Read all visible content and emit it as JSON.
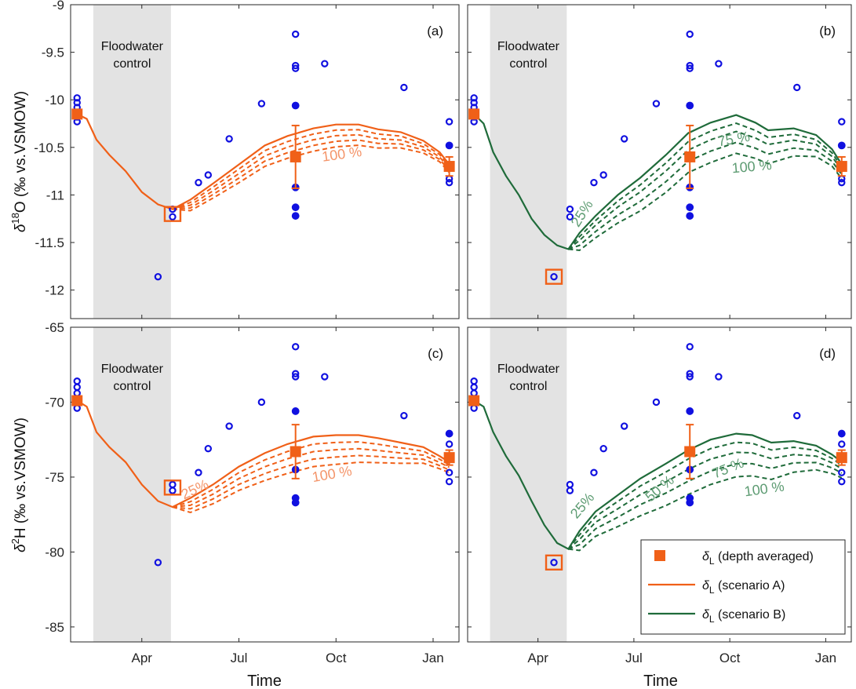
{
  "figure": {
    "xlabel": "Time",
    "ylabel_a": {
      "base": "δ",
      "sup": "18",
      "rest": "O (‰ vs.VSMOW)"
    },
    "ylabel_b": {
      "base": "δ",
      "sup": "2",
      "rest": "H (‰ vs.VSMOW)"
    },
    "shade_label": [
      "Floodwater",
      "control"
    ],
    "x_ticks": [
      {
        "v": 4,
        "label": "Apr"
      },
      {
        "v": 7,
        "label": "Jul"
      },
      {
        "v": 10,
        "label": "Oct"
      },
      {
        "v": 13,
        "label": "Jan"
      }
    ],
    "xlim": [
      1.8,
      13.8
    ],
    "shade_range": [
      2.5,
      4.9
    ],
    "colors": {
      "orange": "#F06018",
      "orange_light": "#F4956A",
      "green": "#1F6B3A",
      "green_light": "#5E9C73",
      "blue": "#1010E0",
      "grey_shade": "#E3E3E3"
    }
  },
  "legend": [
    {
      "label": "δL (depth averaged)",
      "sym": "δ",
      "sub": "L",
      "text": " (depth averaged)",
      "kind": "square"
    },
    {
      "label": "δL (scenario A)",
      "sym": "δ",
      "sub": "L",
      "text": " (scenario A)",
      "kind": "lineA"
    },
    {
      "label": "δL (scenario B)",
      "sym": "δ",
      "sub": "L",
      "text": " (scenario B)",
      "kind": "lineB"
    }
  ],
  "chart_data": [
    {
      "panel": "(a)",
      "type": "line",
      "scenario": "A",
      "ylim": [
        -12.3,
        -9
      ],
      "yticks": [
        -9,
        -9.5,
        -10,
        -10.5,
        -11,
        -11.5,
        -12
      ],
      "measured_open": [
        [
          2.0,
          -9.98
        ],
        [
          2.0,
          -10.03
        ],
        [
          2.0,
          -10.08
        ],
        [
          2.0,
          -10.13
        ],
        [
          2.0,
          -10.18
        ],
        [
          2.0,
          -10.23
        ],
        [
          4.95,
          -11.15
        ],
        [
          4.95,
          -11.23
        ],
        [
          4.5,
          -11.86
        ],
        [
          5.75,
          -10.87
        ],
        [
          6.05,
          -10.79
        ],
        [
          6.7,
          -10.41
        ],
        [
          7.7,
          -10.04
        ],
        [
          8.75,
          -9.31
        ],
        [
          8.75,
          -9.64
        ],
        [
          8.75,
          -9.67
        ],
        [
          9.65,
          -9.62
        ],
        [
          12.1,
          -9.87
        ],
        [
          13.5,
          -10.23
        ],
        [
          13.5,
          -10.83
        ],
        [
          13.5,
          -10.87
        ]
      ],
      "measured_filled": [
        [
          8.75,
          -10.06
        ],
        [
          8.75,
          -10.92
        ],
        [
          8.75,
          -11.13
        ],
        [
          8.75,
          -11.22
        ],
        [
          13.5,
          -10.48
        ]
      ],
      "depth_avg": [
        {
          "x": 2.0,
          "y": -10.15,
          "err": 0
        },
        {
          "x": 8.75,
          "y": -10.6,
          "err": 0.33
        },
        {
          "x": 13.5,
          "y": -10.7,
          "err": 0.1
        }
      ],
      "highlight": [
        4.95,
        -11.2
      ],
      "main_line": [
        [
          2.0,
          -10.15
        ],
        [
          2.3,
          -10.2
        ],
        [
          2.6,
          -10.42
        ],
        [
          3.0,
          -10.58
        ],
        [
          3.5,
          -10.75
        ],
        [
          4.0,
          -10.97
        ],
        [
          4.5,
          -11.1
        ],
        [
          4.95,
          -11.15
        ],
        [
          5.5,
          -11.05
        ],
        [
          6.2,
          -10.88
        ],
        [
          7.0,
          -10.68
        ],
        [
          7.8,
          -10.48
        ],
        [
          8.5,
          -10.38
        ],
        [
          9.3,
          -10.3
        ],
        [
          10.0,
          -10.26
        ],
        [
          10.7,
          -10.26
        ],
        [
          11.3,
          -10.31
        ],
        [
          12.0,
          -10.34
        ],
        [
          12.7,
          -10.43
        ],
        [
          13.2,
          -10.55
        ],
        [
          13.5,
          -10.68
        ]
      ],
      "dashed_offsets": [
        0.06,
        0.12,
        0.18,
        0.24
      ],
      "pct_labels": [
        {
          "x": 10.2,
          "y": -10.62,
          "text": "100 %",
          "rot": -8
        }
      ]
    },
    {
      "panel": "(b)",
      "type": "line",
      "scenario": "B",
      "ylim": [
        -12.3,
        -9
      ],
      "yticks": [
        -9,
        -9.5,
        -10,
        -10.5,
        -11,
        -11.5,
        -12
      ],
      "measured_open": [
        [
          2.0,
          -9.98
        ],
        [
          2.0,
          -10.03
        ],
        [
          2.0,
          -10.08
        ],
        [
          2.0,
          -10.13
        ],
        [
          2.0,
          -10.18
        ],
        [
          2.0,
          -10.23
        ],
        [
          5.0,
          -11.15
        ],
        [
          5.0,
          -11.23
        ],
        [
          4.5,
          -11.86
        ],
        [
          5.75,
          -10.87
        ],
        [
          6.05,
          -10.79
        ],
        [
          6.7,
          -10.41
        ],
        [
          7.7,
          -10.04
        ],
        [
          8.75,
          -9.31
        ],
        [
          8.75,
          -9.64
        ],
        [
          8.75,
          -9.67
        ],
        [
          9.65,
          -9.62
        ],
        [
          12.1,
          -9.87
        ],
        [
          13.5,
          -10.23
        ],
        [
          13.5,
          -10.83
        ],
        [
          13.5,
          -10.87
        ]
      ],
      "measured_filled": [
        [
          8.75,
          -10.06
        ],
        [
          8.75,
          -10.92
        ],
        [
          8.75,
          -11.13
        ],
        [
          8.75,
          -11.22
        ],
        [
          13.5,
          -10.48
        ]
      ],
      "depth_avg": [
        {
          "x": 2.0,
          "y": -10.15,
          "err": 0
        },
        {
          "x": 8.75,
          "y": -10.6,
          "err": 0.33
        },
        {
          "x": 13.5,
          "y": -10.7,
          "err": 0.1
        }
      ],
      "highlight": [
        4.5,
        -11.86
      ],
      "main_line": [
        [
          2.0,
          -10.15
        ],
        [
          2.3,
          -10.25
        ],
        [
          2.6,
          -10.55
        ],
        [
          3.0,
          -10.8
        ],
        [
          3.4,
          -11.0
        ],
        [
          3.8,
          -11.25
        ],
        [
          4.2,
          -11.42
        ],
        [
          4.6,
          -11.53
        ],
        [
          4.95,
          -11.57
        ],
        [
          5.3,
          -11.4
        ],
        [
          5.8,
          -11.22
        ],
        [
          6.5,
          -11.0
        ],
        [
          7.2,
          -10.82
        ],
        [
          8.0,
          -10.58
        ],
        [
          8.7,
          -10.35
        ],
        [
          9.4,
          -10.24
        ],
        [
          10.2,
          -10.16
        ],
        [
          10.8,
          -10.24
        ],
        [
          11.2,
          -10.32
        ],
        [
          12.0,
          -10.3
        ],
        [
          12.7,
          -10.37
        ],
        [
          13.2,
          -10.52
        ],
        [
          13.5,
          -10.68
        ]
      ],
      "dashed_offsets": [
        0.09,
        0.18,
        0.3,
        0.42
      ],
      "pct_labels": [
        {
          "x": 5.5,
          "y": -11.22,
          "text": "25%",
          "rot": -58
        },
        {
          "x": 10.15,
          "y": -10.46,
          "text": "75 %",
          "rot": -10
        },
        {
          "x": 10.7,
          "y": -10.75,
          "text": "100 %",
          "rot": -5
        }
      ]
    },
    {
      "panel": "(c)",
      "type": "line",
      "scenario": "A",
      "ylim": [
        -86,
        -65
      ],
      "yticks": [
        -65,
        -70,
        -75,
        -80,
        -85
      ],
      "measured_open": [
        [
          2.0,
          -68.6
        ],
        [
          2.0,
          -69.0
        ],
        [
          2.0,
          -69.4
        ],
        [
          2.0,
          -70.4
        ],
        [
          4.95,
          -75.5
        ],
        [
          4.95,
          -75.9
        ],
        [
          4.5,
          -80.7
        ],
        [
          5.75,
          -74.7
        ],
        [
          6.05,
          -73.1
        ],
        [
          6.7,
          -71.6
        ],
        [
          7.7,
          -70.0
        ],
        [
          8.75,
          -66.3
        ],
        [
          8.75,
          -68.1
        ],
        [
          8.75,
          -68.3
        ],
        [
          9.65,
          -68.3
        ],
        [
          12.1,
          -70.9
        ],
        [
          13.5,
          -72.8
        ],
        [
          13.5,
          -74.7
        ],
        [
          13.5,
          -75.3
        ]
      ],
      "measured_filled": [
        [
          8.75,
          -70.6
        ],
        [
          8.75,
          -74.5
        ],
        [
          8.75,
          -76.4
        ],
        [
          8.75,
          -76.7
        ],
        [
          13.5,
          -72.1
        ]
      ],
      "depth_avg": [
        {
          "x": 2.0,
          "y": -69.9,
          "err": 0
        },
        {
          "x": 8.75,
          "y": -73.3,
          "err": 1.8
        },
        {
          "x": 13.5,
          "y": -73.7,
          "err": 0.5
        }
      ],
      "highlight": [
        4.95,
        -75.7
      ],
      "main_line": [
        [
          2.0,
          -69.9
        ],
        [
          2.3,
          -70.3
        ],
        [
          2.6,
          -72.0
        ],
        [
          3.0,
          -73.0
        ],
        [
          3.5,
          -74.0
        ],
        [
          4.0,
          -75.5
        ],
        [
          4.5,
          -76.6
        ],
        [
          4.95,
          -77.0
        ],
        [
          5.5,
          -76.4
        ],
        [
          6.2,
          -75.5
        ],
        [
          7.0,
          -74.3
        ],
        [
          7.8,
          -73.4
        ],
        [
          8.5,
          -72.8
        ],
        [
          9.3,
          -72.3
        ],
        [
          10.0,
          -72.2
        ],
        [
          10.7,
          -72.2
        ],
        [
          11.3,
          -72.4
        ],
        [
          12.0,
          -72.7
        ],
        [
          12.7,
          -73.0
        ],
        [
          13.2,
          -73.6
        ],
        [
          13.5,
          -74.0
        ]
      ],
      "dashed_offsets": [
        0.5,
        1.0,
        1.5,
        2.0
      ],
      "pct_labels": [
        {
          "x": 5.7,
          "y": -76.1,
          "text": "25%",
          "rot": -25
        },
        {
          "x": 9.9,
          "y": -75.1,
          "text": "100 %",
          "rot": -10
        }
      ]
    },
    {
      "panel": "(d)",
      "type": "line",
      "scenario": "B",
      "ylim": [
        -86,
        -65
      ],
      "yticks": [
        -65,
        -70,
        -75,
        -80,
        -85
      ],
      "measured_open": [
        [
          2.0,
          -68.6
        ],
        [
          2.0,
          -69.0
        ],
        [
          2.0,
          -69.4
        ],
        [
          2.0,
          -70.4
        ],
        [
          5.0,
          -75.5
        ],
        [
          5.0,
          -75.9
        ],
        [
          4.5,
          -80.7
        ],
        [
          5.75,
          -74.7
        ],
        [
          6.05,
          -73.1
        ],
        [
          6.7,
          -71.6
        ],
        [
          7.7,
          -70.0
        ],
        [
          8.75,
          -66.3
        ],
        [
          8.75,
          -68.1
        ],
        [
          8.75,
          -68.3
        ],
        [
          9.65,
          -68.3
        ],
        [
          12.1,
          -70.9
        ],
        [
          13.5,
          -72.8
        ],
        [
          13.5,
          -74.7
        ],
        [
          13.5,
          -75.3
        ]
      ],
      "measured_filled": [
        [
          8.75,
          -70.6
        ],
        [
          8.75,
          -74.5
        ],
        [
          8.75,
          -76.4
        ],
        [
          8.75,
          -76.7
        ],
        [
          13.5,
          -72.1
        ]
      ],
      "depth_avg": [
        {
          "x": 2.0,
          "y": -69.9,
          "err": 0
        },
        {
          "x": 8.75,
          "y": -73.3,
          "err": 1.8
        },
        {
          "x": 13.5,
          "y": -73.7,
          "err": 0.5
        }
      ],
      "highlight": [
        4.5,
        -80.7
      ],
      "main_line": [
        [
          2.0,
          -69.9
        ],
        [
          2.3,
          -70.3
        ],
        [
          2.6,
          -72.0
        ],
        [
          3.0,
          -73.6
        ],
        [
          3.4,
          -74.9
        ],
        [
          3.8,
          -76.6
        ],
        [
          4.2,
          -78.2
        ],
        [
          4.6,
          -79.4
        ],
        [
          4.95,
          -79.8
        ],
        [
          5.3,
          -78.6
        ],
        [
          5.8,
          -77.3
        ],
        [
          6.5,
          -76.2
        ],
        [
          7.2,
          -75.1
        ],
        [
          8.0,
          -74.1
        ],
        [
          8.7,
          -73.2
        ],
        [
          9.4,
          -72.5
        ],
        [
          10.2,
          -72.1
        ],
        [
          10.7,
          -72.2
        ],
        [
          11.3,
          -72.7
        ],
        [
          12.0,
          -72.6
        ],
        [
          12.7,
          -72.9
        ],
        [
          13.2,
          -73.5
        ],
        [
          13.5,
          -74.0
        ]
      ],
      "dashed_offsets": [
        0.6,
        1.3,
        2.1,
        3.0
      ],
      "pct_labels": [
        {
          "x": 5.5,
          "y": -77.1,
          "text": "25%",
          "rot": -50
        },
        {
          "x": 7.9,
          "y": -76.0,
          "text": "50 %",
          "rot": -40
        },
        {
          "x": 10.0,
          "y": -74.7,
          "text": "75 %",
          "rot": -22
        },
        {
          "x": 11.1,
          "y": -76.1,
          "text": "100 %",
          "rot": -8
        }
      ]
    }
  ]
}
